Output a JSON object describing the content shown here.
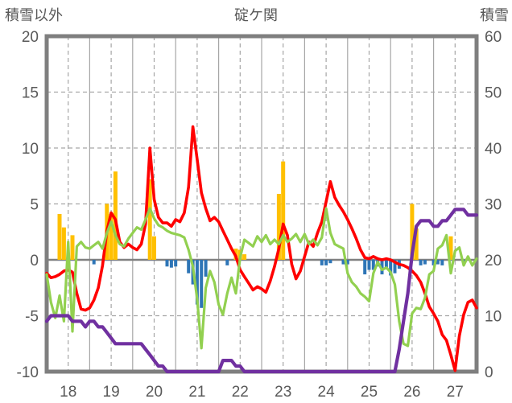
{
  "header": {
    "left_axis_title": "積雪以外",
    "title": "碇ケ関",
    "right_axis_title": "積雪"
  },
  "colors": {
    "red_line": "#FF0000",
    "green_line": "#92D050",
    "purple_line": "#7030A0",
    "orange_bars": "#FFC000",
    "blue_bars": "#2E75B6",
    "grid": "#A6A6A6",
    "zero_line": "#808080",
    "border": "#7F7F7F",
    "text": "#595959"
  },
  "chart_data": {
    "type": "line",
    "title": "碇ケ関",
    "subtitle": "",
    "x_axis": {
      "tick_labels": [
        18,
        19,
        20,
        21,
        22,
        23,
        24,
        25,
        26,
        27
      ],
      "min": 17.5,
      "max": 27.5,
      "solid_gridlines_at": [
        18.5,
        19.5,
        20.5,
        21.5,
        22.5,
        23.5,
        24.5,
        25.5,
        26.5
      ],
      "dashed_gridlines_at": [
        18,
        19,
        20,
        21,
        22,
        23,
        24,
        25,
        26,
        27
      ]
    },
    "left_axis": {
      "title": "積雪以外",
      "ticks": [
        20,
        15,
        10,
        5,
        0,
        -5,
        -10
      ],
      "min": -10,
      "max": 20,
      "dashed_gridlines_at": [
        15,
        10,
        5,
        -5
      ]
    },
    "right_axis": {
      "title": "積雪",
      "ticks": [
        60,
        50,
        40,
        30,
        20,
        10,
        0
      ],
      "min": 0,
      "max": 60
    },
    "sample_start_day": 17.5,
    "sample_step_days": 0.1,
    "series": [
      {
        "name": "red-line",
        "type": "line",
        "axis": "left",
        "color": "#FF0000",
        "values": [
          -1.2,
          -1.6,
          -1.5,
          -1.3,
          -1.0,
          -0.9,
          -1.1,
          -3.0,
          -4.4,
          -4.5,
          -4.3,
          -3.6,
          -2.5,
          -0.5,
          2.6,
          4.2,
          3.6,
          1.6,
          1.1,
          1.4,
          1.1,
          0.9,
          1.4,
          3.2,
          10.0,
          5.4,
          3.8,
          3.3,
          3.3,
          3.0,
          3.6,
          3.4,
          4.2,
          6.5,
          11.9,
          9.0,
          6.0,
          4.6,
          3.5,
          3.8,
          3.4,
          2.6,
          1.8,
          1.0,
          0.3,
          -0.9,
          -1.5,
          -2.1,
          -2.7,
          -2.4,
          -2.6,
          -2.9,
          -1.9,
          -0.6,
          1.0,
          3.2,
          2.2,
          -0.4,
          -1.7,
          -1.0,
          0.3,
          1.6,
          1.2,
          2.4,
          3.4,
          5.2,
          7.0,
          5.6,
          4.9,
          4.3,
          3.6,
          2.8,
          1.9,
          0.9,
          0.2,
          0.1,
          0.3,
          0.1,
          0.0,
          0.1,
          0.0,
          -0.2,
          -0.4,
          -0.5,
          -0.7,
          -1.0,
          -1.4,
          -2.0,
          -3.0,
          -4.2,
          -4.8,
          -5.5,
          -6.7,
          -7.2,
          -8.5,
          -9.9,
          -6.8,
          -4.9,
          -3.8,
          -3.6,
          -4.3
        ]
      },
      {
        "name": "green-line",
        "type": "line",
        "axis": "left",
        "color": "#92D050",
        "values": [
          -1.3,
          -3.8,
          -5.2,
          -3.2,
          -5.5,
          1.6,
          -6.4,
          1.2,
          1.6,
          1.1,
          1.0,
          1.3,
          1.6,
          1.0,
          2.4,
          3.4,
          2.2,
          1.4,
          1.2,
          1.9,
          2.4,
          2.9,
          2.7,
          3.6,
          4.6,
          3.7,
          3.1,
          2.9,
          2.6,
          2.4,
          2.3,
          2.2,
          2.0,
          0.9,
          -0.6,
          -3.5,
          -7.9,
          -2.5,
          -1.0,
          -2.0,
          -4.0,
          -4.9,
          -3.0,
          -1.6,
          -3.0,
          0.2,
          1.8,
          1.5,
          1.2,
          2.1,
          1.6,
          2.2,
          1.4,
          1.8,
          1.4,
          2.2,
          1.6,
          1.9,
          2.3,
          1.6,
          2.3,
          1.4,
          1.8,
          1.3,
          2.0,
          4.6,
          2.4,
          1.4,
          1.2,
          1.0,
          -1.2,
          -2.0,
          -2.4,
          -3.0,
          -3.3,
          -3.7,
          -1.2,
          -0.2,
          -0.9,
          -0.7,
          -1.1,
          -2.2,
          -5.5,
          -7.5,
          -7.7,
          -4.8,
          -4.3,
          -4.4,
          -3.4,
          -1.3,
          -1.0,
          1.0,
          1.3,
          2.2,
          -1.2,
          0.8,
          1.1,
          -0.5,
          0.3,
          -0.5,
          0.1
        ]
      },
      {
        "name": "snow-depth-line",
        "type": "line",
        "axis": "right",
        "color": "#7030A0",
        "values": [
          9,
          10,
          10,
          10,
          10,
          10,
          9,
          9,
          9,
          8,
          9,
          9,
          8,
          8,
          7,
          6,
          5,
          5,
          5,
          5,
          5,
          5,
          5,
          4,
          3,
          2,
          1,
          1,
          0,
          0,
          0,
          0,
          0,
          0,
          0,
          0,
          0,
          0,
          0,
          0,
          0,
          2,
          2,
          2,
          1,
          1,
          0,
          0,
          0,
          0,
          0,
          0,
          0,
          0,
          0,
          0,
          0,
          0,
          0,
          0,
          0,
          0,
          0,
          0,
          0,
          0,
          0,
          0,
          0,
          0,
          0,
          0,
          0,
          0,
          0,
          0,
          0,
          0,
          0,
          0,
          0,
          0,
          4,
          9,
          14,
          21,
          26,
          27,
          27,
          27,
          26,
          26,
          27,
          27,
          28,
          29,
          29,
          29,
          28,
          28,
          28
        ]
      },
      {
        "name": "orange-bars",
        "type": "bar",
        "axis": "left",
        "color": "#FFC000",
        "points": [
          [
            17.8,
            4.1
          ],
          [
            17.9,
            2.9
          ],
          [
            18.1,
            2.2
          ],
          [
            18.9,
            5.0
          ],
          [
            19.0,
            4.1
          ],
          [
            19.1,
            7.9
          ],
          [
            19.9,
            7.2
          ],
          [
            20.0,
            2.1
          ],
          [
            21.9,
            1.0
          ],
          [
            22.0,
            0.9
          ],
          [
            22.1,
            0.5
          ],
          [
            22.9,
            5.9
          ],
          [
            23.0,
            8.8
          ],
          [
            26.0,
            5.0
          ],
          [
            26.1,
            2.8
          ],
          [
            26.9,
            2.1
          ]
        ]
      },
      {
        "name": "blue-bars",
        "type": "bar",
        "axis": "left",
        "color": "#2E75B6",
        "points": [
          [
            18.6,
            -0.4
          ],
          [
            20.3,
            -0.6
          ],
          [
            20.4,
            -0.7
          ],
          [
            20.5,
            -0.6
          ],
          [
            20.8,
            -1.2
          ],
          [
            20.9,
            -2.2
          ],
          [
            21.0,
            -4.0
          ],
          [
            21.1,
            -4.3
          ],
          [
            21.2,
            -1.5
          ],
          [
            21.7,
            -0.5
          ],
          [
            23.9,
            -0.5
          ],
          [
            24.0,
            -0.5
          ],
          [
            24.1,
            -0.3
          ],
          [
            24.4,
            -0.4
          ],
          [
            24.5,
            -0.4
          ],
          [
            24.9,
            -1.3
          ],
          [
            25.0,
            -0.9
          ],
          [
            25.1,
            -0.9
          ],
          [
            25.2,
            -0.6
          ],
          [
            25.3,
            -1.3
          ],
          [
            25.4,
            -0.7
          ],
          [
            25.5,
            -1.4
          ],
          [
            25.6,
            -1.2
          ],
          [
            25.7,
            -0.8
          ],
          [
            26.2,
            -0.5
          ],
          [
            26.3,
            -0.4
          ],
          [
            26.5,
            -0.5
          ],
          [
            26.6,
            -0.4
          ],
          [
            26.7,
            -0.5
          ],
          [
            27.2,
            -0.4
          ]
        ]
      }
    ]
  }
}
